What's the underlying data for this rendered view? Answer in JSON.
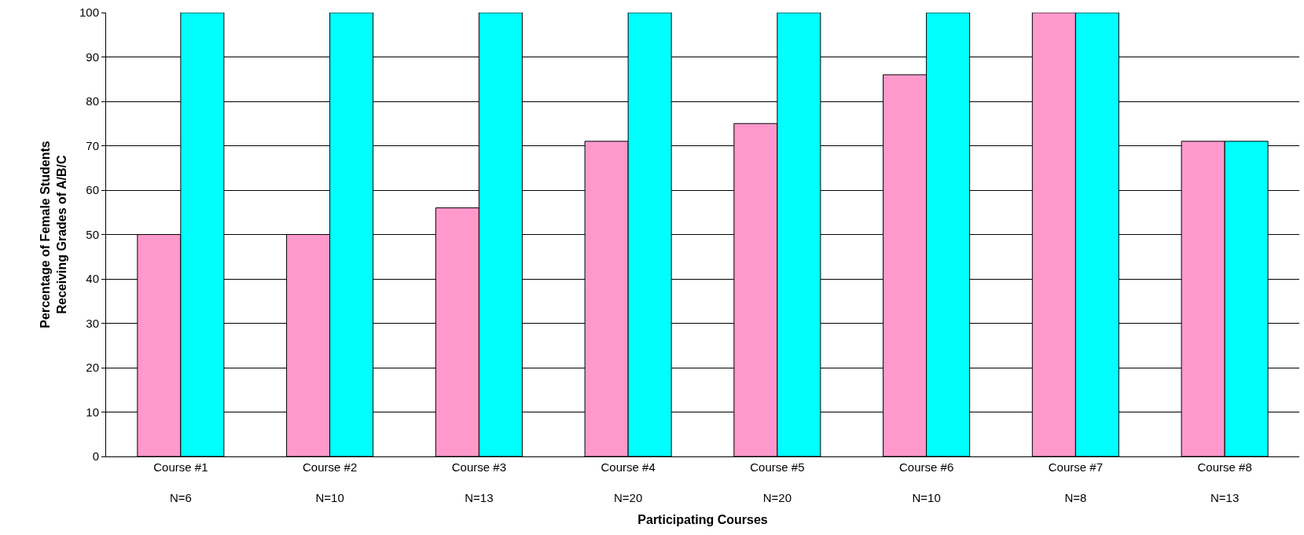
{
  "chart_data": {
    "type": "bar",
    "xlabel": "Participating Courses",
    "ylabel": "Percentage of Female Students\nReceiving Grades of A/B/C",
    "categories": [
      "Course #1\nN=6",
      "Course #2\nN=10",
      "Course #3\nN=13",
      "Course #4\nN=20",
      "Course #5\nN=20",
      "Course #6\nN=10",
      "Course #7\nN=8",
      "Course #8\nN=13"
    ],
    "series": [
      {
        "color": "#ff99cc",
        "values": [
          50,
          50,
          56,
          71,
          75,
          86,
          100,
          71
        ]
      },
      {
        "color": "#00ffff",
        "values": [
          100,
          100,
          100,
          100,
          100,
          100,
          100,
          71
        ]
      }
    ],
    "ylim": [
      0,
      100
    ],
    "yticks": [
      0,
      10,
      20,
      30,
      40,
      50,
      60,
      70,
      80,
      90,
      100
    ],
    "grid": "y"
  }
}
